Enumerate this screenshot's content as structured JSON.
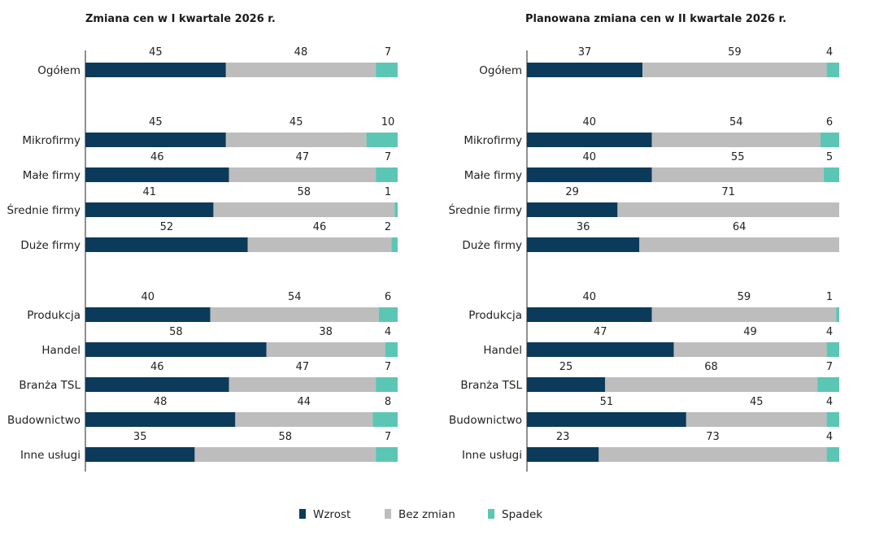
{
  "colors": {
    "wzrost": "#0b3a5a",
    "bez_zmian": "#bdbdbd",
    "spadek": "#5cc6b4"
  },
  "legend": [
    {
      "key": "wzrost",
      "label": "Wzrost"
    },
    {
      "key": "bez_zmian",
      "label": "Bez zmian"
    },
    {
      "key": "spadek",
      "label": "Spadek"
    }
  ],
  "chart_data": [
    {
      "type": "bar",
      "orientation": "horizontal",
      "stacked": true,
      "title": "Zmiana cen w I kwartale 2026 r.",
      "categories": [
        "Ogółem",
        "Mikrofirmy",
        "Małe firmy",
        "Średnie firmy",
        "Duże firmy",
        "Produkcja",
        "Handel",
        "Branża TSL",
        "Budownictwo",
        "Inne usługi"
      ],
      "series": [
        {
          "name": "Wzrost",
          "values": [
            45,
            45,
            46,
            41,
            52,
            40,
            58,
            46,
            48,
            35
          ]
        },
        {
          "name": "Bez zmian",
          "values": [
            48,
            45,
            47,
            58,
            46,
            54,
            38,
            47,
            44,
            58
          ]
        },
        {
          "name": "Spadek",
          "values": [
            7,
            10,
            7,
            1,
            2,
            6,
            4,
            7,
            8,
            7
          ]
        }
      ],
      "xlim": [
        0,
        100
      ],
      "grid": false,
      "legend": "bottom"
    },
    {
      "type": "bar",
      "orientation": "horizontal",
      "stacked": true,
      "title": "Planowana zmiana cen w II kwartale 2026 r.",
      "categories": [
        "Ogółem",
        "Mikrofirmy",
        "Małe firmy",
        "Średnie firmy",
        "Duże firmy",
        "Produkcja",
        "Handel",
        "Branża TSL",
        "Budownictwo",
        "Inne usługi"
      ],
      "series": [
        {
          "name": "Wzrost",
          "values": [
            37,
            40,
            40,
            29,
            36,
            40,
            47,
            25,
            51,
            23
          ]
        },
        {
          "name": "Bez zmian",
          "values": [
            59,
            54,
            55,
            71,
            64,
            59,
            49,
            68,
            45,
            73
          ]
        },
        {
          "name": "Spadek",
          "values": [
            4,
            6,
            5,
            null,
            null,
            1,
            4,
            7,
            4,
            4
          ]
        }
      ],
      "xlim": [
        0,
        100
      ],
      "grid": false,
      "legend": "bottom"
    }
  ]
}
